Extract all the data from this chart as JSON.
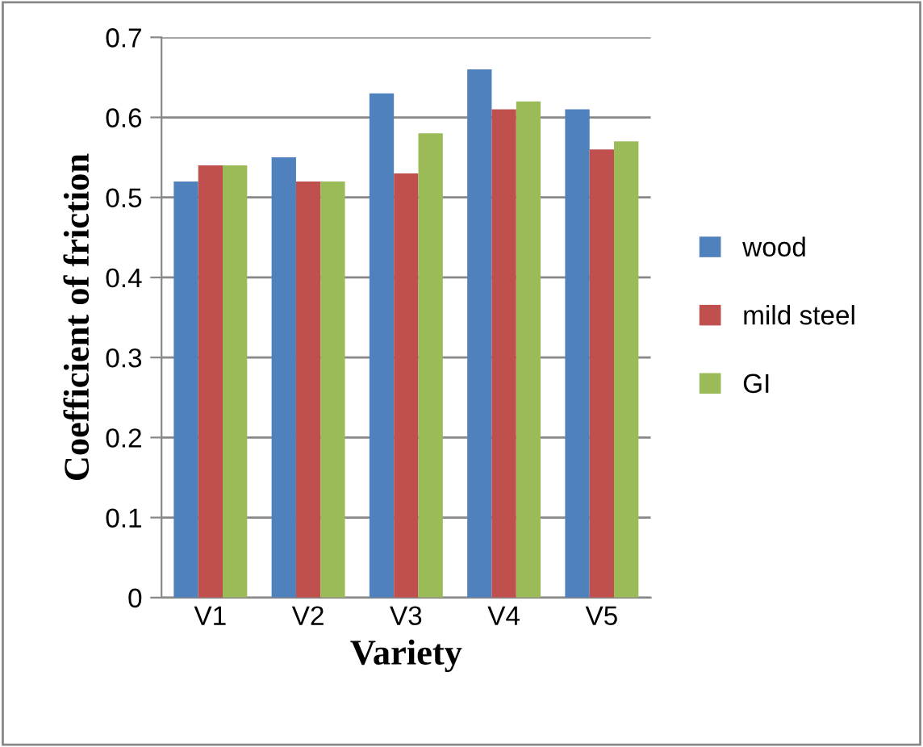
{
  "chart_data": {
    "type": "bar",
    "xlabel": "Variety",
    "ylabel": "Coefficient of friction",
    "categories": [
      "V1",
      "V2",
      "V3",
      "V4",
      "V5"
    ],
    "series": [
      {
        "name": "wood",
        "color": "#4f81bd",
        "values": [
          0.52,
          0.55,
          0.63,
          0.66,
          0.61
        ]
      },
      {
        "name": "mild steel",
        "color": "#c0504d",
        "values": [
          0.54,
          0.52,
          0.53,
          0.61,
          0.56
        ]
      },
      {
        "name": "GI",
        "color": "#9bbb59",
        "values": [
          0.54,
          0.52,
          0.58,
          0.62,
          0.57
        ]
      }
    ],
    "ylim": [
      0,
      0.7
    ],
    "yticks": [
      {
        "value": 0,
        "label": "0"
      },
      {
        "value": 0.1,
        "label": "0.1"
      },
      {
        "value": 0.2,
        "label": "0.2"
      },
      {
        "value": 0.3,
        "label": "0.3"
      },
      {
        "value": 0.4,
        "label": "0.4"
      },
      {
        "value": 0.5,
        "label": "0.5"
      },
      {
        "value": 0.6,
        "label": "0.6"
      },
      {
        "value": 0.7,
        "label": "0.7"
      }
    ],
    "grid": "y",
    "legend": "right"
  }
}
